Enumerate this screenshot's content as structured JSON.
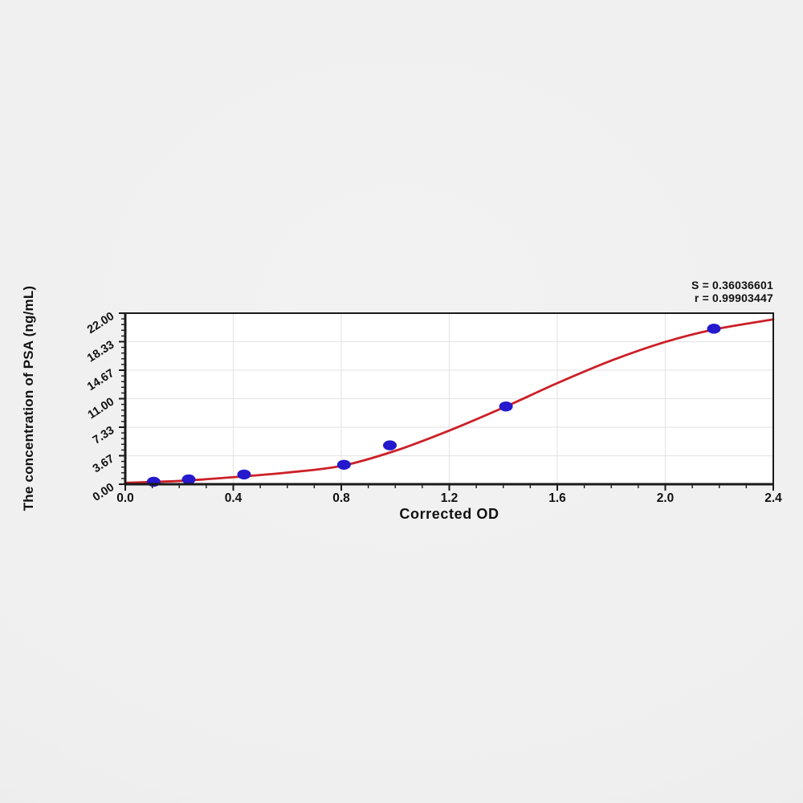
{
  "chart_data": {
    "type": "scatter",
    "title": "",
    "xlabel": "Corrected OD",
    "ylabel": "The concentration of PSA (ng/mL)",
    "annotations": {
      "s_line": "S = 0.36036601",
      "r_line": "r = 0.99903447"
    },
    "xlim": [
      0,
      2.4
    ],
    "ylim": [
      0,
      22
    ],
    "x_tick_labels": [
      "0.0",
      "0.4",
      "0.8",
      "1.2",
      "1.6",
      "2.0",
      "2.4"
    ],
    "y_tick_labels": [
      "0.00",
      "3.67",
      "7.33",
      "11.00",
      "14.67",
      "18.33",
      "22.00"
    ],
    "x_minor_subdivisions": 4,
    "y_minor_subdivisions": 5,
    "grid": "on",
    "legend": "none",
    "series": [
      {
        "name": "standard-points",
        "type": "scatter",
        "marker": "ellipse",
        "color": "#2519cd",
        "points": [
          [
            0.105,
            0.31
          ],
          [
            0.235,
            0.62
          ],
          [
            0.44,
            1.25
          ],
          [
            0.81,
            2.5
          ],
          [
            0.98,
            5.0
          ],
          [
            1.41,
            10.0
          ],
          [
            2.18,
            20.0
          ]
        ]
      },
      {
        "name": "fit-curve",
        "type": "line",
        "color": "#cc2027",
        "points": [
          [
            0,
            0.18
          ],
          [
            0.2,
            0.42
          ],
          [
            0.4,
            0.9
          ],
          [
            0.6,
            1.5
          ],
          [
            0.8,
            2.35
          ],
          [
            1.0,
            4.3
          ],
          [
            1.2,
            6.9
          ],
          [
            1.41,
            10.0
          ],
          [
            1.6,
            13.0
          ],
          [
            1.8,
            15.9
          ],
          [
            2.0,
            18.3
          ],
          [
            2.18,
            19.9
          ],
          [
            2.4,
            21.2
          ]
        ]
      }
    ],
    "colors": {
      "curve": "#cc2027",
      "points": "#2519cd",
      "grid": "#e6e6e6",
      "frame": "#1a1a1a",
      "plot_bg": "#ffffff",
      "text": "#111111",
      "page_bg": "#efefef"
    }
  }
}
